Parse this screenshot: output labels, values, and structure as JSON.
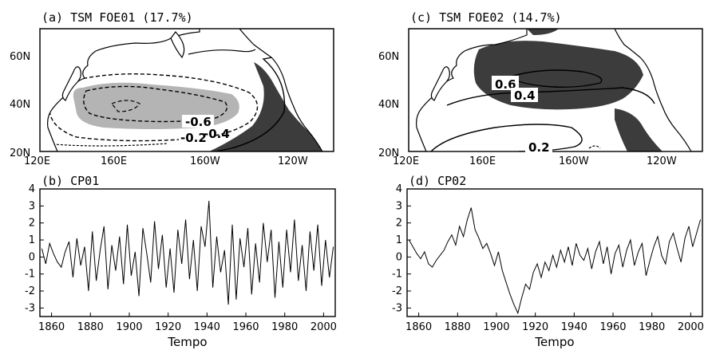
{
  "colors": {
    "negative_shade": "#b4b4b4",
    "positive_shade": "#3c3c3c",
    "land": "#ffffff",
    "line": "#000000"
  },
  "chart_data": [
    {
      "type": "contour_map",
      "title": "(a) TSM FOE01 (17.7%)",
      "lon_ticks": [
        "120E",
        "160E",
        "160W",
        "120W"
      ],
      "lat_ticks": [
        "60N",
        "40N",
        "20N"
      ],
      "contour_labels": [
        "-0.6",
        "-0.2",
        "-0.4"
      ],
      "legend": "none",
      "grid": false
    },
    {
      "type": "contour_map",
      "title": "(c) TSM FOE02 (14.7%)",
      "lon_ticks": [
        "120E",
        "160E",
        "160W",
        "120W"
      ],
      "lat_ticks": [
        "60N",
        "40N",
        "20N"
      ],
      "contour_labels": [
        "0.6",
        "0.4",
        "0.2"
      ],
      "legend": "none",
      "grid": false
    },
    {
      "type": "line",
      "title": "(b) CP01",
      "xlabel": "Tempo",
      "ylabel": "",
      "xlim": [
        1854,
        2006
      ],
      "ylim": [
        -3.5,
        4
      ],
      "x_ticks": [
        1860,
        1880,
        1900,
        1920,
        1940,
        1960,
        1980,
        2000
      ],
      "y_ticks": [
        -3,
        -2,
        -1,
        0,
        1,
        2,
        3,
        4
      ],
      "x": [
        1855,
        1857,
        1859,
        1861,
        1863,
        1865,
        1867,
        1869,
        1871,
        1873,
        1875,
        1877,
        1879,
        1881,
        1883,
        1885,
        1887,
        1889,
        1891,
        1893,
        1895,
        1897,
        1899,
        1901,
        1903,
        1905,
        1907,
        1909,
        1911,
        1913,
        1915,
        1917,
        1919,
        1921,
        1923,
        1925,
        1927,
        1929,
        1931,
        1933,
        1935,
        1937,
        1939,
        1941,
        1943,
        1945,
        1947,
        1949,
        1951,
        1953,
        1955,
        1957,
        1959,
        1961,
        1963,
        1965,
        1967,
        1969,
        1971,
        1973,
        1975,
        1977,
        1979,
        1981,
        1983,
        1985,
        1987,
        1989,
        1991,
        1993,
        1995,
        1997,
        1999,
        2001,
        2003,
        2005
      ],
      "values": [
        0.5,
        -0.4,
        0.8,
        0.2,
        -0.3,
        -0.6,
        0.3,
        0.9,
        -1.2,
        1.1,
        -0.5,
        0.6,
        -2.0,
        1.5,
        -1.4,
        0.4,
        1.8,
        -1.9,
        0.7,
        -0.8,
        1.2,
        -1.6,
        1.9,
        -1.1,
        0.3,
        -2.3,
        1.7,
        0.2,
        -1.5,
        2.1,
        -0.7,
        1.3,
        -1.8,
        0.5,
        -2.1,
        1.6,
        -0.4,
        2.2,
        -1.3,
        1.0,
        -2.0,
        1.8,
        0.6,
        3.3,
        -1.8,
        1.2,
        -0.9,
        0.4,
        -2.8,
        1.9,
        -2.5,
        1.1,
        -0.6,
        1.7,
        -2.2,
        0.8,
        -1.5,
        2.0,
        -0.3,
        1.6,
        -2.4,
        0.9,
        -1.8,
        1.6,
        -0.9,
        2.2,
        -1.4,
        0.7,
        -2.0,
        1.5,
        -0.8,
        1.9,
        -1.7,
        1.0,
        -1.2,
        0.6
      ]
    },
    {
      "type": "line",
      "title": "(d) CP02",
      "xlabel": "Tempo",
      "ylabel": "",
      "xlim": [
        1854,
        2006
      ],
      "ylim": [
        -3.5,
        4
      ],
      "x_ticks": [
        1860,
        1880,
        1900,
        1920,
        1940,
        1960,
        1980,
        2000
      ],
      "y_ticks": [
        -3,
        -2,
        -1,
        0,
        1,
        2,
        3,
        4
      ],
      "x": [
        1855,
        1857,
        1859,
        1861,
        1863,
        1865,
        1867,
        1869,
        1871,
        1873,
        1875,
        1877,
        1879,
        1881,
        1883,
        1885,
        1887,
        1889,
        1891,
        1893,
        1895,
        1897,
        1899,
        1901,
        1903,
        1905,
        1907,
        1909,
        1911,
        1913,
        1915,
        1917,
        1919,
        1921,
        1923,
        1925,
        1927,
        1929,
        1931,
        1933,
        1935,
        1937,
        1939,
        1941,
        1943,
        1945,
        1947,
        1949,
        1951,
        1953,
        1955,
        1957,
        1959,
        1961,
        1963,
        1965,
        1967,
        1969,
        1971,
        1973,
        1975,
        1977,
        1979,
        1981,
        1983,
        1985,
        1987,
        1989,
        1991,
        1993,
        1995,
        1997,
        1999,
        2001,
        2003,
        2005
      ],
      "values": [
        1.0,
        0.6,
        0.2,
        -0.1,
        0.3,
        -0.4,
        -0.6,
        -0.2,
        0.1,
        0.4,
        0.9,
        1.3,
        0.7,
        1.8,
        1.2,
        2.2,
        2.9,
        1.6,
        1.1,
        0.5,
        0.8,
        0.2,
        -0.5,
        0.3,
        -0.8,
        -1.5,
        -2.2,
        -2.8,
        -3.3,
        -2.4,
        -1.6,
        -1.9,
        -0.9,
        -0.4,
        -1.2,
        -0.3,
        -0.8,
        0.1,
        -0.6,
        0.4,
        -0.3,
        0.6,
        -0.5,
        0.8,
        0.1,
        -0.2,
        0.5,
        -0.7,
        0.3,
        0.9,
        -0.4,
        0.6,
        -1.0,
        0.2,
        0.7,
        -0.6,
        0.4,
        1.0,
        -0.5,
        0.3,
        0.8,
        -1.1,
        -0.2,
        0.6,
        1.2,
        0.1,
        -0.4,
        0.9,
        1.4,
        0.5,
        -0.3,
        1.1,
        1.8,
        0.6,
        1.4,
        2.2
      ]
    }
  ]
}
